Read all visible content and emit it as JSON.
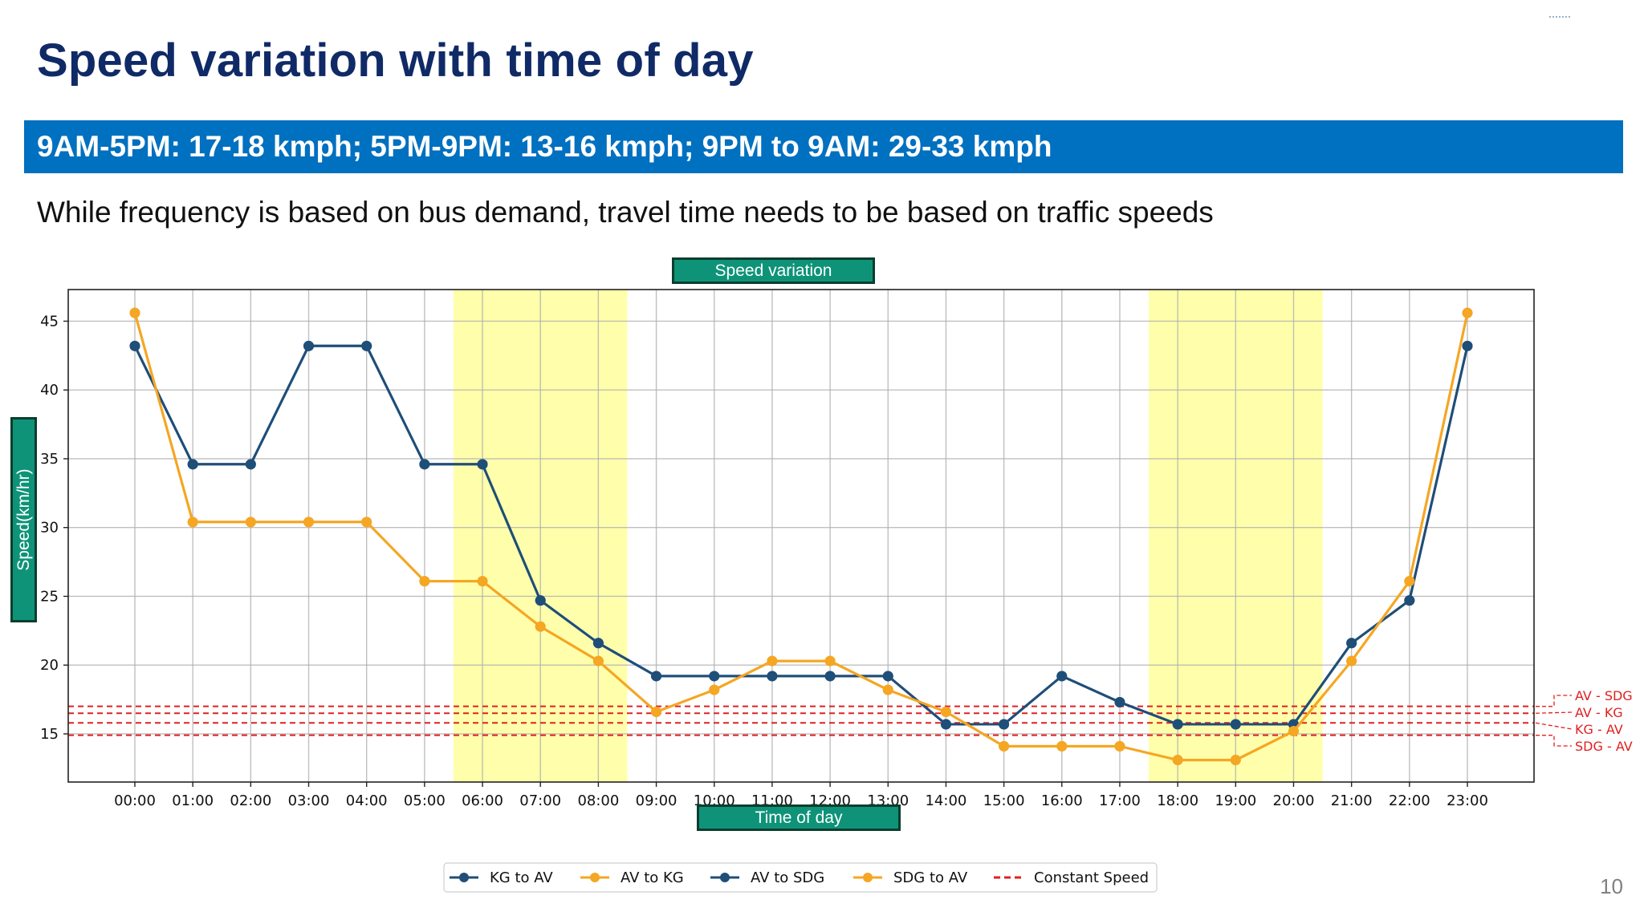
{
  "slide": {
    "title": "Speed variation with time of day",
    "banner": "9AM-5PM: 17-18 kmph; 5PM-9PM: 13-16 kmph; 9PM to 9AM: 29-33 kmph",
    "subtitle": "While frequency is based on bus demand, travel time needs to be based on traffic speeds",
    "page_number": "10"
  },
  "chart_data": {
    "type": "line",
    "title": "Speed variation",
    "xlabel": "Time of day",
    "ylabel": "Speed(km/hr)",
    "categories": [
      "00:00",
      "01:00",
      "02:00",
      "03:00",
      "04:00",
      "05:00",
      "06:00",
      "07:00",
      "08:00",
      "09:00",
      "10:00",
      "11:00",
      "12:00",
      "13:00",
      "14:00",
      "15:00",
      "16:00",
      "17:00",
      "18:00",
      "19:00",
      "20:00",
      "21:00",
      "22:00",
      "23:00"
    ],
    "ylim": [
      11.5,
      47.3
    ],
    "yticks": [
      15,
      20,
      25,
      30,
      35,
      40,
      45
    ],
    "xlim": [
      -1.15,
      24.15
    ],
    "grid": true,
    "peak_bands": [
      {
        "from": 5.5,
        "to": 8.5,
        "color": "#ffff66"
      },
      {
        "from": 17.5,
        "to": 20.5,
        "color": "#ffff66"
      }
    ],
    "series": [
      {
        "name": "KG to AV",
        "color": "#1f4e79",
        "marker": "circle",
        "values": [
          43.2,
          34.6,
          34.6,
          43.2,
          43.2,
          34.6,
          34.6,
          24.7,
          21.6,
          19.2,
          19.2,
          19.2,
          19.2,
          19.2,
          15.7,
          15.7,
          19.2,
          17.3,
          15.7,
          15.7,
          15.7,
          21.6,
          24.7,
          43.2
        ]
      },
      {
        "name": "AV to KG",
        "color": "#f5a623",
        "marker": "circle",
        "values": [
          45.6,
          30.4,
          30.4,
          30.4,
          30.4,
          26.1,
          26.1,
          22.8,
          20.3,
          16.6,
          18.2,
          20.3,
          20.3,
          18.2,
          16.6,
          14.1,
          14.1,
          14.1,
          13.1,
          13.1,
          15.2,
          20.3,
          26.1,
          45.6
        ]
      },
      {
        "name": "AV to SDG",
        "color": "#1f4e79",
        "marker": "circle",
        "values": [
          43.2,
          34.6,
          34.6,
          43.2,
          43.2,
          34.6,
          34.6,
          24.7,
          21.6,
          19.2,
          19.2,
          19.2,
          19.2,
          19.2,
          15.7,
          15.7,
          19.2,
          17.3,
          15.7,
          15.7,
          15.7,
          21.6,
          24.7,
          43.2
        ]
      },
      {
        "name": "SDG to AV",
        "color": "#f5a623",
        "marker": "circle",
        "values": [
          45.6,
          30.4,
          30.4,
          30.4,
          30.4,
          26.1,
          26.1,
          22.8,
          20.3,
          16.6,
          18.2,
          20.3,
          20.3,
          18.2,
          16.6,
          14.1,
          14.1,
          14.1,
          13.1,
          13.1,
          15.2,
          20.3,
          26.1,
          45.6
        ]
      }
    ],
    "constant_speed": {
      "name": "Constant Speed",
      "color": "#e02020",
      "lines": [
        {
          "label": "AV - SDG",
          "value": 17.0
        },
        {
          "label": "AV - KG",
          "value": 16.5
        },
        {
          "label": "KG - AV",
          "value": 15.8
        },
        {
          "label": "SDG - AV",
          "value": 14.9
        }
      ]
    },
    "legend": {
      "position": "bottom-center"
    }
  }
}
